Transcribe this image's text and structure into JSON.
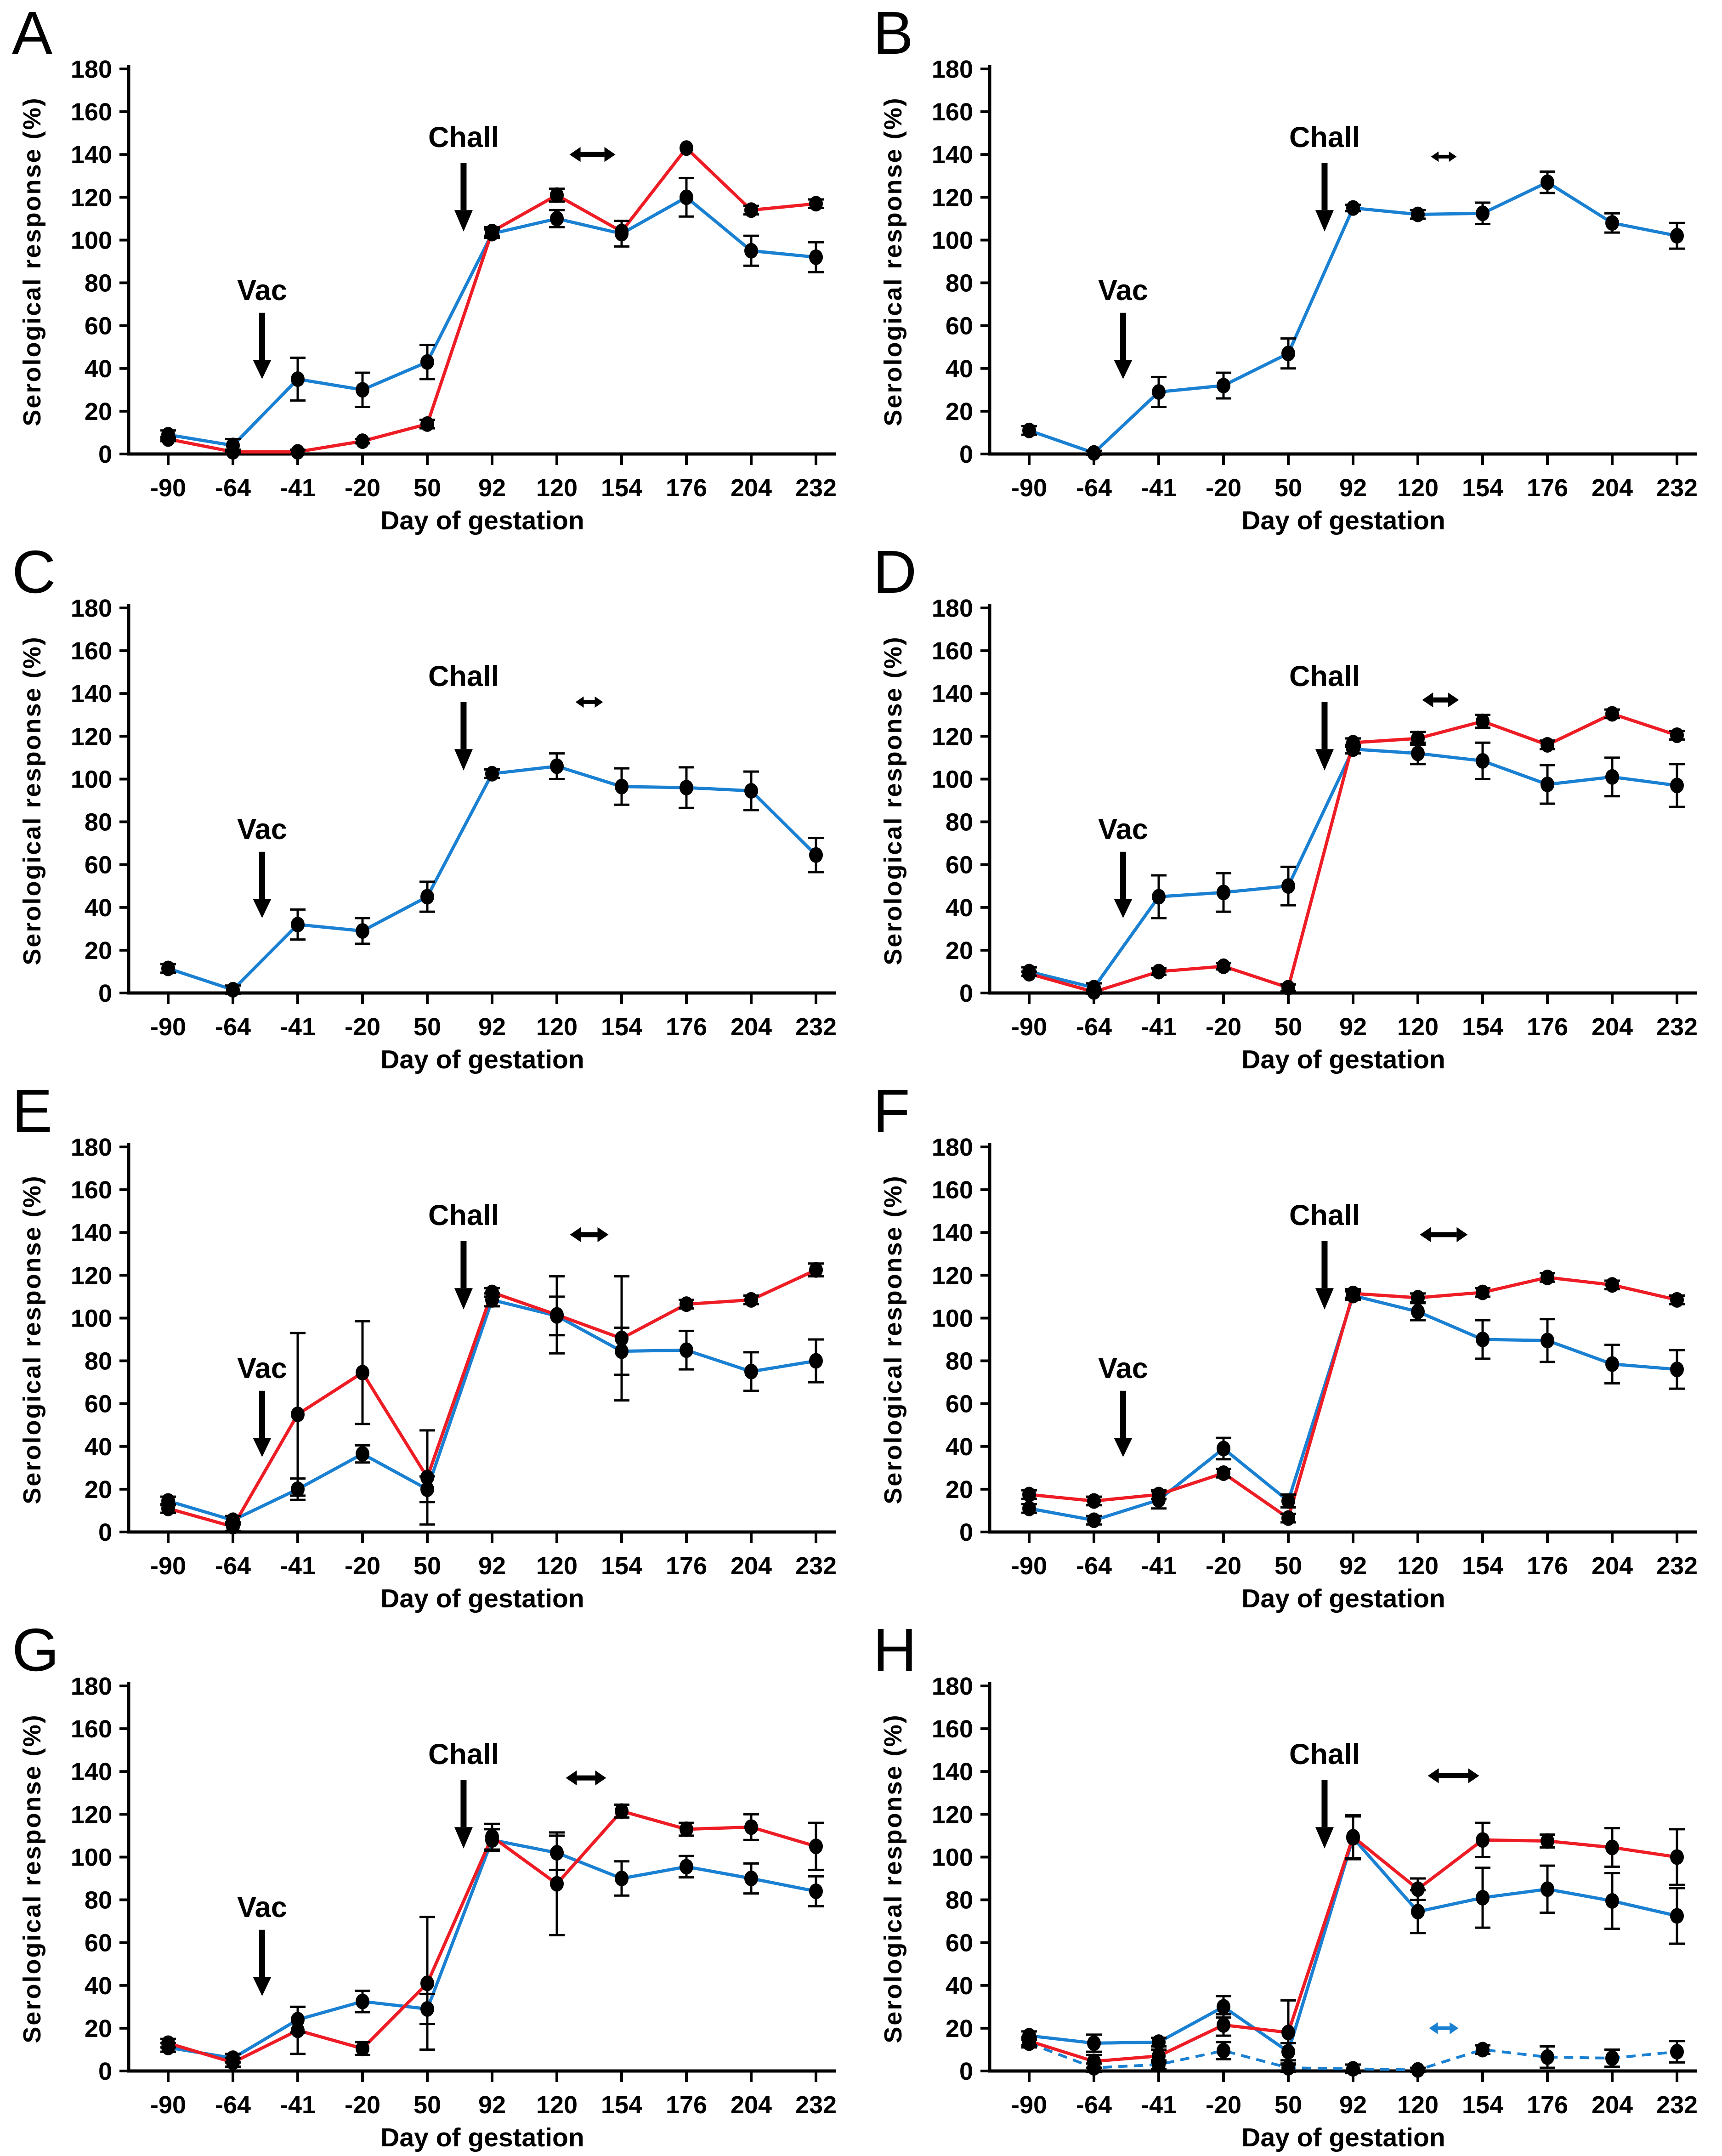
{
  "figure": {
    "xlabel": "Day of gestation",
    "ylabel": "Serological response (%)",
    "vac_label": "Vac",
    "chall_label": "Chall",
    "colors": {
      "blue": "#1a80d2",
      "red": "#ee1c24",
      "black": "#000000",
      "marker": "#000000"
    },
    "ylim": [
      0,
      180
    ],
    "y_ticks": [
      0,
      20,
      40,
      60,
      80,
      100,
      120,
      140,
      160,
      180
    ]
  },
  "chart_data": [
    {
      "panel": "A",
      "type": "line",
      "xlabel": "Day of gestation",
      "ylabel": "Serological response (%)",
      "ylim": [
        0,
        180
      ],
      "y_ticks": [
        0,
        20,
        40,
        60,
        80,
        100,
        120,
        140,
        160,
        180
      ],
      "categories": [
        "-90",
        "-64",
        "-41",
        "-20",
        "50",
        "92",
        "120",
        "154",
        "176",
        "204",
        "232"
      ],
      "series": [
        {
          "name": "blue",
          "color": "blue",
          "style": "solid",
          "values": [
            9,
            4,
            35,
            30,
            43,
            103,
            110,
            103,
            120,
            95,
            92
          ],
          "errors": [
            2,
            3,
            10,
            8,
            8,
            2,
            4,
            6,
            9,
            7,
            7
          ]
        },
        {
          "name": "red",
          "color": "red",
          "style": "solid",
          "values": [
            7,
            1,
            1,
            6,
            14,
            104,
            121,
            104,
            143,
            114,
            117
          ],
          "errors": [
            1,
            1,
            1,
            1,
            2,
            2,
            3,
            0,
            0,
            2,
            2
          ]
        }
      ],
      "annotations": {
        "vac": true,
        "chall": true,
        "double_arrows": [
          {
            "color": "black",
            "y": 140,
            "center": 6.55,
            "half": 50
          }
        ]
      }
    },
    {
      "panel": "B",
      "type": "line",
      "xlabel": "Day of gestation",
      "ylabel": "Serological response (%)",
      "ylim": [
        0,
        180
      ],
      "y_ticks": [
        0,
        20,
        40,
        60,
        80,
        100,
        120,
        140,
        160,
        180
      ],
      "categories": [
        "-90",
        "-64",
        "-41",
        "-20",
        "50",
        "92",
        "120",
        "154",
        "176",
        "204",
        "232"
      ],
      "series": [
        {
          "name": "blue",
          "color": "blue",
          "style": "solid",
          "values": [
            11,
            0.5,
            29,
            32,
            47,
            115,
            112,
            112.5,
            127,
            108,
            102
          ],
          "errors": [
            2,
            1,
            7,
            6,
            7,
            1.5,
            2,
            5,
            5,
            4.5,
            6
          ]
        }
      ],
      "annotations": {
        "vac": true,
        "chall": true,
        "double_arrows": [
          {
            "color": "black",
            "y": 139,
            "center": 6.4,
            "half": 28
          }
        ]
      }
    },
    {
      "panel": "C",
      "type": "line",
      "xlabel": "Day of gestation",
      "ylabel": "Serological response (%)",
      "ylim": [
        0,
        180
      ],
      "y_ticks": [
        0,
        20,
        40,
        60,
        80,
        100,
        120,
        140,
        160,
        180
      ],
      "categories": [
        "-90",
        "-64",
        "-41",
        "-20",
        "50",
        "92",
        "120",
        "154",
        "176",
        "204",
        "232"
      ],
      "series": [
        {
          "name": "blue",
          "color": "blue",
          "style": "solid",
          "values": [
            11.5,
            1.5,
            32,
            29,
            45,
            102.5,
            106,
            96.5,
            96,
            94.5,
            64.5
          ],
          "errors": [
            2,
            2,
            7,
            6,
            7,
            2,
            6,
            8.5,
            9.5,
            9,
            8
          ]
        }
      ],
      "annotations": {
        "vac": true,
        "chall": true,
        "double_arrows": [
          {
            "color": "black",
            "y": 136,
            "center": 6.5,
            "half": 30
          }
        ]
      }
    },
    {
      "panel": "D",
      "type": "line",
      "xlabel": "Day of gestation",
      "ylabel": "Serological response (%)",
      "ylim": [
        0,
        180
      ],
      "y_ticks": [
        0,
        20,
        40,
        60,
        80,
        100,
        120,
        140,
        160,
        180
      ],
      "categories": [
        "-90",
        "-64",
        "-41",
        "-20",
        "50",
        "92",
        "120",
        "154",
        "176",
        "204",
        "232"
      ],
      "series": [
        {
          "name": "blue",
          "color": "blue",
          "style": "solid",
          "values": [
            10,
            2.5,
            45,
            47,
            50,
            114,
            112,
            108.5,
            97.5,
            101,
            97
          ],
          "errors": [
            2,
            2,
            10,
            9,
            9,
            2,
            5,
            8.5,
            9,
            9,
            10
          ]
        },
        {
          "name": "red",
          "color": "red",
          "style": "solid",
          "values": [
            9,
            0.5,
            10,
            12.5,
            2.5,
            117,
            119,
            127,
            116,
            130.5,
            120.5
          ],
          "errors": [
            1,
            1,
            1.5,
            1.5,
            1.5,
            2,
            3,
            3,
            2,
            2,
            2
          ]
        }
      ],
      "annotations": {
        "vac": true,
        "chall": true,
        "double_arrows": [
          {
            "color": "black",
            "y": 137,
            "center": 6.35,
            "half": 40
          }
        ]
      }
    },
    {
      "panel": "E",
      "type": "line",
      "xlabel": "Day of gestation",
      "ylabel": "Serological response (%)",
      "ylim": [
        0,
        180
      ],
      "y_ticks": [
        0,
        20,
        40,
        60,
        80,
        100,
        120,
        140,
        160,
        180
      ],
      "categories": [
        "-90",
        "-64",
        "-41",
        "-20",
        "50",
        "92",
        "120",
        "154",
        "176",
        "204",
        "232"
      ],
      "series": [
        {
          "name": "blue",
          "color": "blue",
          "style": "solid",
          "values": [
            14.5,
            5.5,
            20,
            36.5,
            20,
            108.5,
            101,
            84.5,
            85,
            75,
            80
          ],
          "errors": [
            2,
            2,
            5,
            4,
            6,
            3,
            9,
            11,
            9,
            9,
            10
          ]
        },
        {
          "name": "red",
          "color": "red",
          "style": "solid",
          "values": [
            11,
            2.5,
            55,
            74.5,
            25.5,
            112,
            101.5,
            90.5,
            106.5,
            108.5,
            122.5
          ],
          "errors": [
            2,
            2,
            38,
            24,
            22,
            2,
            18,
            29,
            2,
            2,
            3
          ]
        }
      ],
      "annotations": {
        "vac": true,
        "chall": true,
        "double_arrows": [
          {
            "color": "black",
            "y": 139,
            "center": 6.5,
            "half": 42
          }
        ]
      }
    },
    {
      "panel": "F",
      "type": "line",
      "xlabel": "Day of gestation",
      "ylabel": "Serological response (%)",
      "ylim": [
        0,
        180
      ],
      "y_ticks": [
        0,
        20,
        40,
        60,
        80,
        100,
        120,
        140,
        160,
        180
      ],
      "categories": [
        "-90",
        "-64",
        "-41",
        "-20",
        "50",
        "92",
        "120",
        "154",
        "176",
        "204",
        "232"
      ],
      "series": [
        {
          "name": "blue",
          "color": "blue",
          "style": "solid",
          "values": [
            11,
            5.5,
            15,
            39,
            14.5,
            110.5,
            103,
            90,
            89.5,
            78.5,
            76
          ],
          "errors": [
            2,
            2,
            4,
            5,
            3,
            2,
            4,
            9,
            10,
            9,
            9
          ]
        },
        {
          "name": "red",
          "color": "red",
          "style": "solid",
          "values": [
            17.5,
            14.5,
            17.5,
            27.5,
            6.5,
            111.5,
            109.5,
            112,
            119,
            115.5,
            108.5
          ],
          "errors": [
            2,
            2,
            2,
            2,
            2,
            2,
            2,
            2,
            2,
            2,
            2
          ]
        }
      ],
      "annotations": {
        "vac": true,
        "chall": true,
        "double_arrows": [
          {
            "color": "black",
            "y": 139,
            "center": 6.4,
            "half": 52
          }
        ]
      }
    },
    {
      "panel": "G",
      "type": "line",
      "xlabel": "Day of gestation",
      "ylabel": "Serological response (%)",
      "ylim": [
        0,
        180
      ],
      "y_ticks": [
        0,
        20,
        40,
        60,
        80,
        100,
        120,
        140,
        160,
        180
      ],
      "categories": [
        "-90",
        "-64",
        "-41",
        "-20",
        "50",
        "92",
        "120",
        "154",
        "176",
        "204",
        "232"
      ],
      "series": [
        {
          "name": "blue",
          "color": "blue",
          "style": "solid",
          "values": [
            11,
            6,
            24,
            32.5,
            29,
            108,
            102,
            90,
            95.5,
            90,
            84
          ],
          "errors": [
            2,
            2,
            6,
            5,
            7,
            5,
            8,
            8,
            5,
            7,
            7
          ]
        },
        {
          "name": "red",
          "color": "red",
          "style": "solid",
          "values": [
            13,
            4,
            19,
            10.5,
            41,
            109.5,
            87.5,
            121.5,
            113,
            114,
            105
          ],
          "errors": [
            2,
            2,
            11,
            3,
            31,
            6,
            24,
            3,
            3,
            6,
            11
          ]
        }
      ],
      "annotations": {
        "vac": true,
        "chall": true,
        "double_arrows": [
          {
            "color": "black",
            "y": 137,
            "center": 6.45,
            "half": 44
          }
        ]
      }
    },
    {
      "panel": "H",
      "type": "line",
      "xlabel": "Day of gestation",
      "ylabel": "Serological response (%)",
      "ylim": [
        0,
        180
      ],
      "y_ticks": [
        0,
        20,
        40,
        60,
        80,
        100,
        120,
        140,
        160,
        180
      ],
      "categories": [
        "-90",
        "-64",
        "-41",
        "-20",
        "50",
        "92",
        "120",
        "154",
        "176",
        "204",
        "232"
      ],
      "series": [
        {
          "name": "blue",
          "color": "blue",
          "style": "solid",
          "values": [
            16.5,
            13,
            13.5,
            30,
            9,
            109,
            74.5,
            81,
            85,
            79.5,
            72.5
          ],
          "errors": [
            2,
            4,
            2,
            5,
            4,
            10,
            10,
            14,
            11,
            13,
            13
          ]
        },
        {
          "name": "red",
          "color": "red",
          "style": "solid",
          "values": [
            14,
            4.5,
            7,
            21.5,
            18,
            109.5,
            85,
            108,
            107.5,
            104.5,
            100
          ],
          "errors": [
            2,
            3,
            3,
            5,
            15,
            10,
            5,
            8,
            3,
            9,
            13
          ]
        },
        {
          "name": "blue-dashed",
          "color": "blue",
          "style": "dashed",
          "values": [
            13,
            1.5,
            3,
            9.5,
            1.5,
            1,
            0.5,
            10,
            6.5,
            6,
            9
          ],
          "errors": [
            2,
            2,
            2,
            4,
            2,
            2,
            1,
            2,
            5,
            4,
            5
          ]
        }
      ],
      "annotations": {
        "vac": false,
        "chall": true,
        "double_arrows": [
          {
            "color": "black",
            "y": 138,
            "center": 6.55,
            "half": 56
          },
          {
            "color": "blue",
            "y": 20,
            "center": 6.4,
            "half": 32
          }
        ]
      }
    }
  ]
}
